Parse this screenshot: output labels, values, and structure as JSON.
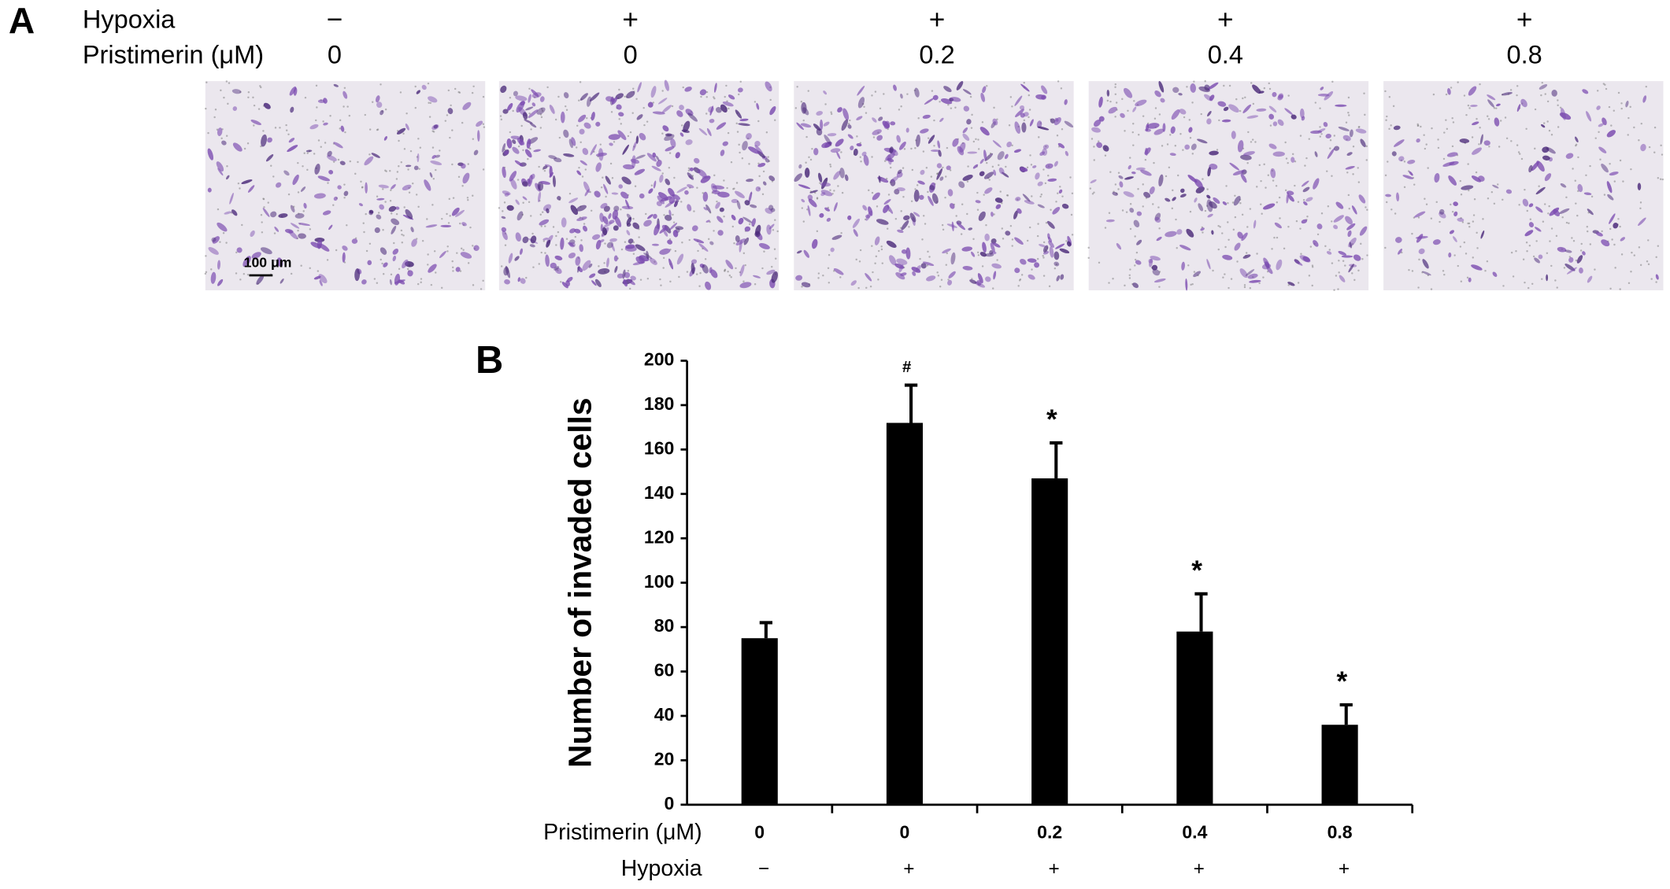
{
  "panel_a": {
    "label": "A",
    "row_labels": [
      "Hypoxia",
      "Pristimerin (μM)"
    ],
    "hypoxia": [
      "−",
      "+",
      "+",
      "+",
      "+"
    ],
    "pristimerin": [
      "0",
      "0",
      "0.2",
      "0.4",
      "0.8"
    ],
    "scale_bar": "100 μm"
  },
  "chart_data": {
    "type": "bar",
    "panel_label": "B",
    "ylabel": "Number of invaded cells",
    "categories": [
      "0",
      "0",
      "0.2",
      "0.4",
      "0.8"
    ],
    "hypoxia_row": [
      "−",
      "+",
      "+",
      "+",
      "+"
    ],
    "x_row_labels": [
      "Pristimerin (μM)",
      "Hypoxia"
    ],
    "values": [
      75,
      172,
      147,
      78,
      36
    ],
    "errors": [
      7,
      17,
      16,
      17,
      9
    ],
    "annotations": [
      null,
      "#",
      "*",
      "*",
      "*"
    ],
    "color": "#000000",
    "ylim": [
      0,
      200
    ],
    "yticks": [
      0,
      20,
      40,
      60,
      80,
      100,
      120,
      140,
      160,
      180,
      200
    ]
  }
}
